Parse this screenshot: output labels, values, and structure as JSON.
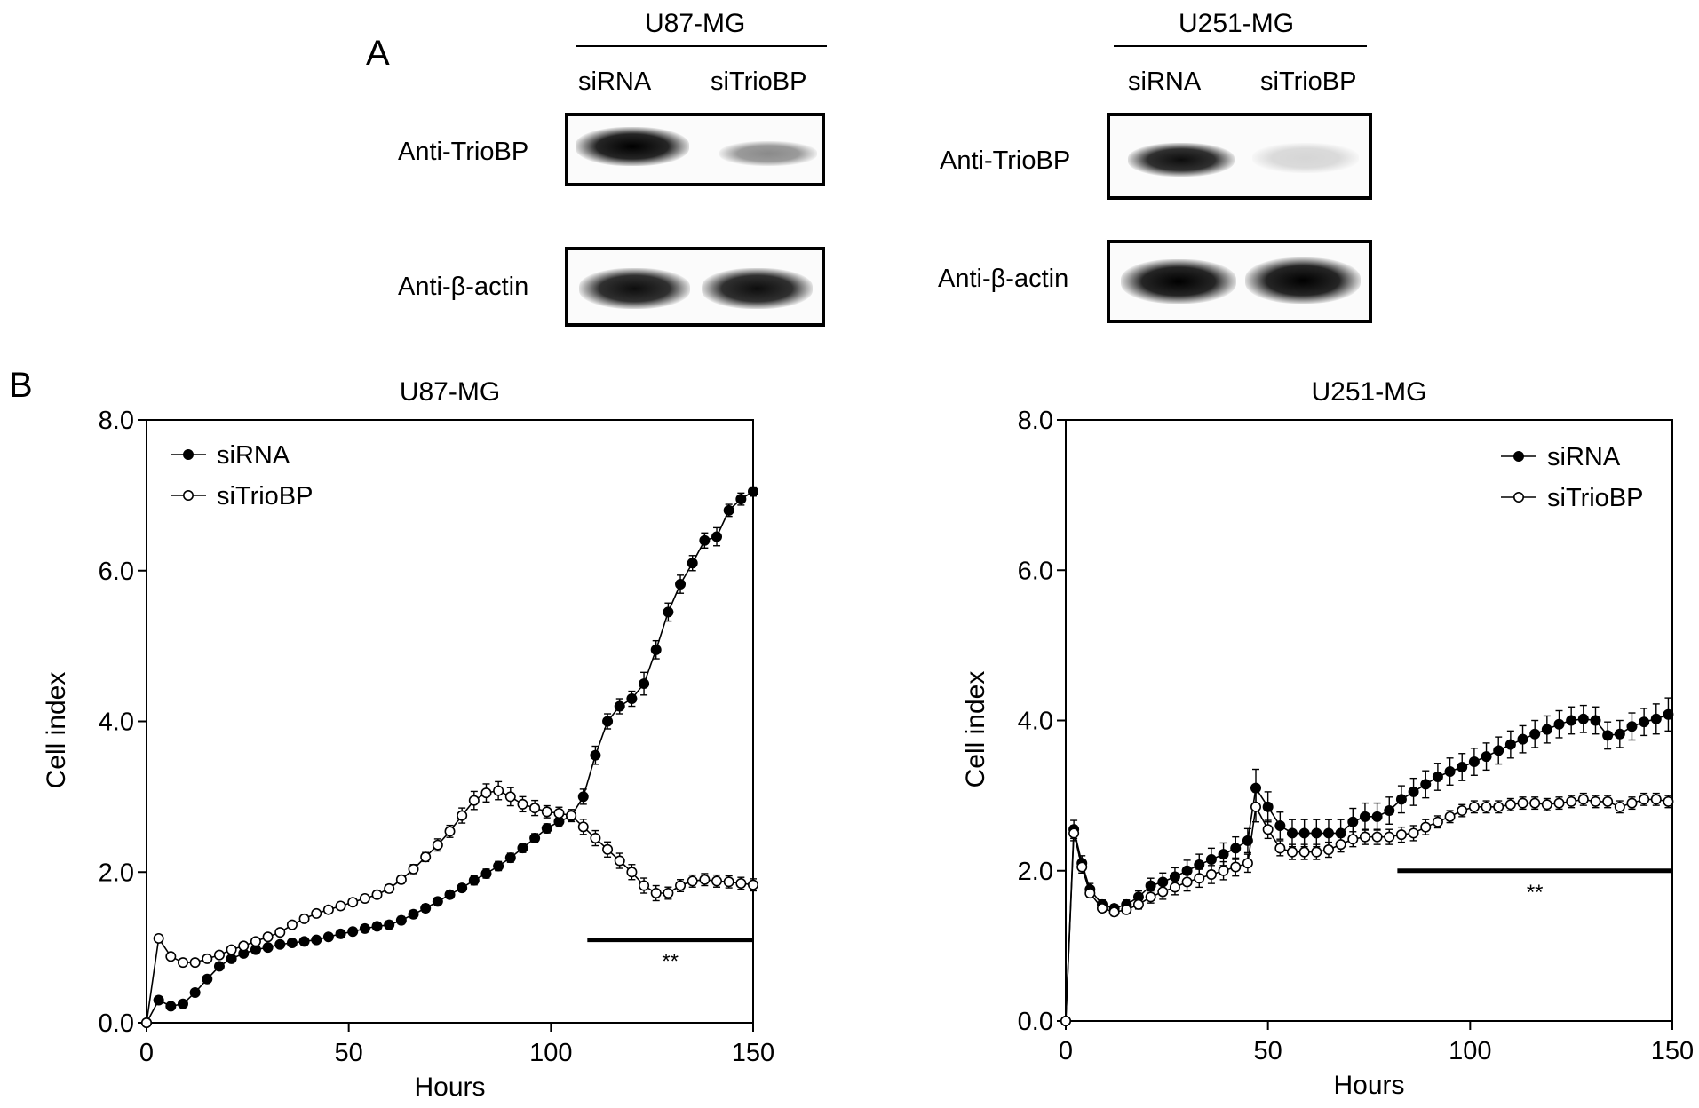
{
  "panel_a": {
    "letter": "A",
    "blots": [
      {
        "cell_line": "U87-MG",
        "lanes": [
          "siRNA",
          "siTrioBP"
        ],
        "rows": [
          {
            "antibody": "Anti-TrioBP",
            "lane_intensity": [
              1.0,
              0.45
            ]
          },
          {
            "antibody": "Anti-β-actin",
            "lane_intensity": [
              0.95,
              0.95
            ]
          }
        ]
      },
      {
        "cell_line": "U251-MG",
        "lanes": [
          "siRNA",
          "siTrioBP"
        ],
        "rows": [
          {
            "antibody": "Anti-TrioBP",
            "lane_intensity": [
              0.95,
              0.15
            ]
          },
          {
            "antibody": "Anti-β-actin",
            "lane_intensity": [
              1.0,
              1.0
            ]
          }
        ]
      }
    ]
  },
  "panel_b": {
    "letter": "B"
  },
  "chart_data": [
    {
      "type": "line",
      "title": "U87-MG",
      "xlabel": "Hours",
      "ylabel": "Cell index",
      "xlim": [
        0,
        150
      ],
      "ylim": [
        0,
        8
      ],
      "xticks": [
        "0",
        "50",
        "100",
        "150"
      ],
      "yticks": [
        "0.0",
        "2.0",
        "4.0",
        "6.0",
        "8.0"
      ],
      "grid": false,
      "legend_position": "top-left",
      "annotation": {
        "text": "**",
        "x_range": [
          109,
          150
        ],
        "y": 1.1
      },
      "series": [
        {
          "name": "siRNA",
          "marker": "filled",
          "x": [
            0,
            3,
            6,
            9,
            12,
            15,
            18,
            21,
            24,
            27,
            30,
            33,
            36,
            39,
            42,
            45,
            48,
            51,
            54,
            57,
            60,
            63,
            66,
            69,
            72,
            75,
            78,
            81,
            84,
            87,
            90,
            93,
            96,
            99,
            102,
            105,
            108,
            111,
            114,
            117,
            120,
            123,
            126,
            129,
            132,
            135,
            138,
            141,
            144,
            147,
            150
          ],
          "y": [
            0.0,
            0.3,
            0.22,
            0.25,
            0.4,
            0.58,
            0.75,
            0.85,
            0.92,
            0.97,
            1.0,
            1.04,
            1.06,
            1.08,
            1.1,
            1.14,
            1.18,
            1.21,
            1.25,
            1.28,
            1.3,
            1.36,
            1.44,
            1.52,
            1.61,
            1.7,
            1.79,
            1.89,
            1.98,
            2.08,
            2.19,
            2.32,
            2.45,
            2.58,
            2.67,
            2.74,
            3.0,
            3.55,
            4.0,
            4.2,
            4.3,
            4.5,
            4.95,
            5.45,
            5.82,
            6.1,
            6.4,
            6.45,
            6.8,
            6.95,
            7.05
          ],
          "error": [
            0,
            0.03,
            0.03,
            0.03,
            0.03,
            0.04,
            0.04,
            0.04,
            0.04,
            0.04,
            0.04,
            0.04,
            0.04,
            0.04,
            0.04,
            0.04,
            0.04,
            0.04,
            0.04,
            0.04,
            0.05,
            0.05,
            0.05,
            0.05,
            0.05,
            0.05,
            0.05,
            0.06,
            0.06,
            0.06,
            0.06,
            0.06,
            0.06,
            0.06,
            0.07,
            0.07,
            0.1,
            0.12,
            0.1,
            0.1,
            0.1,
            0.15,
            0.12,
            0.12,
            0.12,
            0.1,
            0.1,
            0.12,
            0.08,
            0.08,
            0.06
          ]
        },
        {
          "name": "siTrioBP",
          "marker": "open",
          "x": [
            0,
            3,
            6,
            9,
            12,
            15,
            18,
            21,
            24,
            27,
            30,
            33,
            36,
            39,
            42,
            45,
            48,
            51,
            54,
            57,
            60,
            63,
            66,
            69,
            72,
            75,
            78,
            81,
            84,
            87,
            90,
            93,
            96,
            99,
            102,
            105,
            108,
            111,
            114,
            117,
            120,
            123,
            126,
            129,
            132,
            135,
            138,
            141,
            144,
            147,
            150
          ],
          "y": [
            0.0,
            1.12,
            0.88,
            0.8,
            0.8,
            0.85,
            0.9,
            0.97,
            1.02,
            1.08,
            1.14,
            1.2,
            1.3,
            1.38,
            1.45,
            1.5,
            1.55,
            1.6,
            1.65,
            1.7,
            1.78,
            1.9,
            2.04,
            2.2,
            2.36,
            2.54,
            2.75,
            2.95,
            3.05,
            3.08,
            3.0,
            2.9,
            2.85,
            2.8,
            2.78,
            2.75,
            2.6,
            2.45,
            2.3,
            2.15,
            2.0,
            1.82,
            1.72,
            1.72,
            1.82,
            1.88,
            1.9,
            1.88,
            1.87,
            1.85,
            1.83
          ],
          "error": [
            0,
            0.04,
            0.04,
            0.03,
            0.03,
            0.03,
            0.03,
            0.03,
            0.03,
            0.03,
            0.03,
            0.04,
            0.04,
            0.04,
            0.04,
            0.04,
            0.04,
            0.04,
            0.04,
            0.05,
            0.05,
            0.05,
            0.06,
            0.06,
            0.08,
            0.08,
            0.1,
            0.12,
            0.12,
            0.12,
            0.12,
            0.1,
            0.1,
            0.08,
            0.08,
            0.08,
            0.1,
            0.1,
            0.1,
            0.1,
            0.1,
            0.1,
            0.1,
            0.08,
            0.08,
            0.08,
            0.08,
            0.08,
            0.08,
            0.08,
            0.08
          ]
        }
      ]
    },
    {
      "type": "line",
      "title": "U251-MG",
      "xlabel": "Hours",
      "ylabel": "Cell index",
      "xlim": [
        0,
        150
      ],
      "ylim": [
        0,
        8
      ],
      "xticks": [
        "0",
        "50",
        "100",
        "150"
      ],
      "yticks": [
        "0.0",
        "2.0",
        "4.0",
        "6.0",
        "8.0"
      ],
      "grid": false,
      "legend_position": "top-right",
      "annotation": {
        "text": "**",
        "x_range": [
          82,
          150
        ],
        "y": 2.0
      },
      "series": [
        {
          "name": "siRNA",
          "marker": "filled",
          "x": [
            0,
            2,
            4,
            6,
            9,
            12,
            15,
            18,
            21,
            24,
            27,
            30,
            33,
            36,
            39,
            42,
            45,
            47,
            50,
            53,
            56,
            59,
            62,
            65,
            68,
            71,
            74,
            77,
            80,
            83,
            86,
            89,
            92,
            95,
            98,
            101,
            104,
            107,
            110,
            113,
            116,
            119,
            122,
            125,
            128,
            131,
            134,
            137,
            140,
            143,
            146,
            149
          ],
          "y": [
            0.0,
            2.55,
            2.1,
            1.75,
            1.55,
            1.5,
            1.55,
            1.65,
            1.8,
            1.85,
            1.92,
            2.0,
            2.08,
            2.15,
            2.22,
            2.3,
            2.4,
            3.1,
            2.85,
            2.6,
            2.5,
            2.5,
            2.5,
            2.5,
            2.5,
            2.65,
            2.72,
            2.72,
            2.8,
            2.95,
            3.05,
            3.15,
            3.25,
            3.32,
            3.38,
            3.45,
            3.52,
            3.6,
            3.68,
            3.75,
            3.82,
            3.88,
            3.95,
            4.0,
            4.02,
            4.0,
            3.8,
            3.82,
            3.92,
            3.98,
            4.02,
            4.08
          ],
          "error": [
            0,
            0.12,
            0.1,
            0.08,
            0.06,
            0.05,
            0.06,
            0.08,
            0.1,
            0.12,
            0.12,
            0.14,
            0.14,
            0.15,
            0.15,
            0.15,
            0.16,
            0.25,
            0.2,
            0.18,
            0.18,
            0.18,
            0.18,
            0.18,
            0.18,
            0.18,
            0.18,
            0.18,
            0.18,
            0.18,
            0.18,
            0.18,
            0.18,
            0.18,
            0.18,
            0.18,
            0.18,
            0.18,
            0.18,
            0.18,
            0.18,
            0.18,
            0.18,
            0.18,
            0.18,
            0.18,
            0.18,
            0.18,
            0.18,
            0.18,
            0.2,
            0.22
          ]
        },
        {
          "name": "siTrioBP",
          "marker": "open",
          "x": [
            0,
            2,
            4,
            6,
            9,
            12,
            15,
            18,
            21,
            24,
            27,
            30,
            33,
            36,
            39,
            42,
            45,
            47,
            50,
            53,
            56,
            59,
            62,
            65,
            68,
            71,
            74,
            77,
            80,
            83,
            86,
            89,
            92,
            95,
            98,
            101,
            104,
            107,
            110,
            113,
            116,
            119,
            122,
            125,
            128,
            131,
            134,
            137,
            140,
            143,
            146,
            149
          ],
          "y": [
            0.0,
            2.5,
            2.05,
            1.7,
            1.5,
            1.45,
            1.48,
            1.55,
            1.65,
            1.72,
            1.78,
            1.85,
            1.9,
            1.95,
            2.0,
            2.05,
            2.1,
            2.85,
            2.55,
            2.3,
            2.25,
            2.25,
            2.25,
            2.28,
            2.35,
            2.42,
            2.45,
            2.45,
            2.45,
            2.48,
            2.5,
            2.58,
            2.65,
            2.72,
            2.8,
            2.85,
            2.85,
            2.85,
            2.88,
            2.9,
            2.9,
            2.88,
            2.9,
            2.92,
            2.95,
            2.92,
            2.92,
            2.85,
            2.9,
            2.95,
            2.95,
            2.92
          ],
          "error": [
            0,
            0.1,
            0.08,
            0.06,
            0.05,
            0.05,
            0.05,
            0.06,
            0.08,
            0.1,
            0.1,
            0.12,
            0.12,
            0.12,
            0.12,
            0.12,
            0.12,
            0.2,
            0.12,
            0.1,
            0.1,
            0.1,
            0.1,
            0.1,
            0.1,
            0.1,
            0.1,
            0.1,
            0.1,
            0.1,
            0.1,
            0.1,
            0.08,
            0.08,
            0.08,
            0.08,
            0.08,
            0.08,
            0.08,
            0.08,
            0.08,
            0.08,
            0.08,
            0.08,
            0.08,
            0.08,
            0.08,
            0.08,
            0.08,
            0.08,
            0.08,
            0.08
          ]
        }
      ]
    }
  ]
}
